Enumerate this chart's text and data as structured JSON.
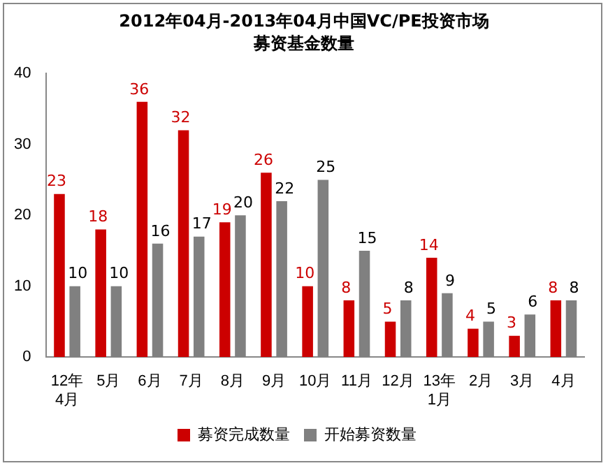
{
  "chart_data": {
    "type": "bar",
    "title": "2012年04月-2013年04月中国VC/PE投资市场",
    "subtitle": "募资基金数量",
    "categories": [
      "12年\n4月",
      "5月",
      "6月",
      "7月",
      "8月",
      "9月",
      "10月",
      "11月",
      "12月",
      "13年\n1月",
      "2月",
      "3月",
      "4月"
    ],
    "series": [
      {
        "name": "募资完成数量",
        "color": "#cc0000",
        "values": [
          23,
          18,
          36,
          32,
          19,
          26,
          10,
          8,
          5,
          14,
          4,
          3,
          8
        ]
      },
      {
        "name": "开始募资数量",
        "color": "#808080",
        "values": [
          10,
          10,
          16,
          17,
          20,
          22,
          25,
          15,
          8,
          9,
          5,
          6,
          8
        ]
      }
    ],
    "ylim": [
      0,
      40
    ],
    "yticks": [
      0,
      10,
      20,
      30,
      40
    ],
    "grid": false,
    "legend": "bottom",
    "data_labels": true
  }
}
